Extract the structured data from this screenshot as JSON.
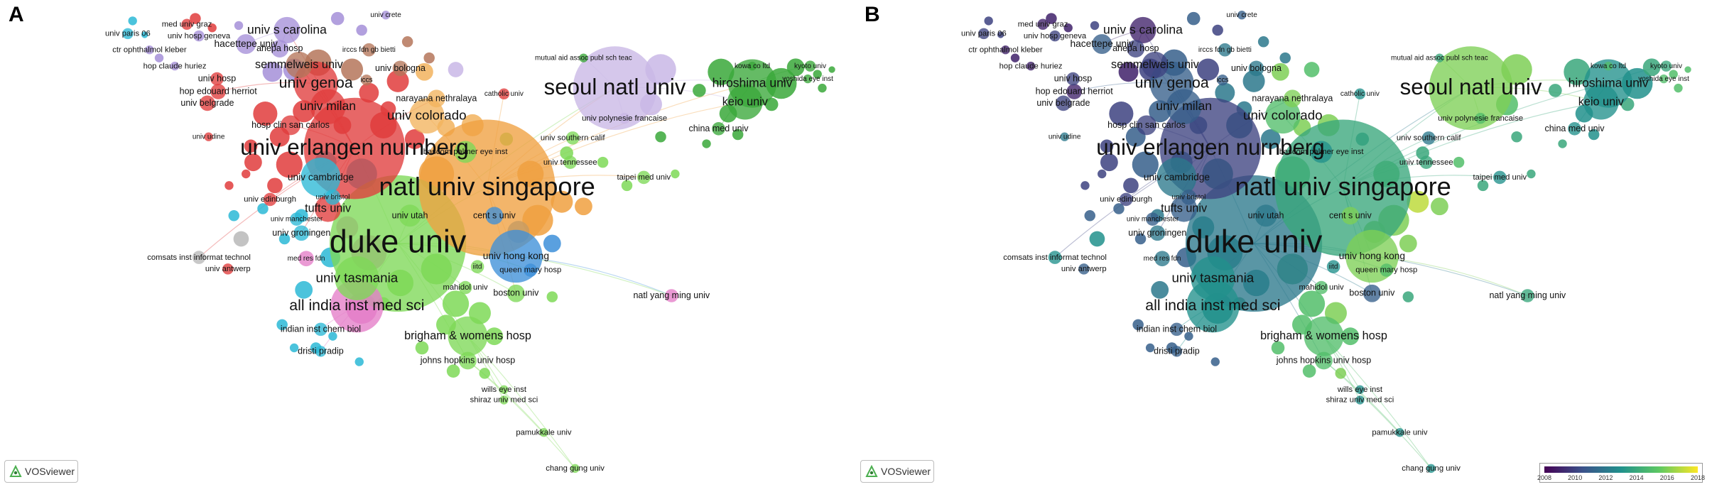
{
  "panels": [
    {
      "letter": "A",
      "mode": "cluster"
    },
    {
      "letter": "B",
      "mode": "overlay"
    }
  ],
  "software_label": "VOSviewer",
  "overlay_legend": {
    "ticks": [
      "2008",
      "2010",
      "2012",
      "2014",
      "2016",
      "2018"
    ],
    "colors": [
      "#440154",
      "#3b528b",
      "#21918c",
      "#5ec962",
      "#fde725"
    ]
  },
  "cluster_colors": {
    "red": "#e03c3c",
    "green": "#7ed957",
    "blue": "#3d8fd9",
    "yellow": "#f2b35e",
    "purple": "#a58fd8",
    "skyblue": "#2cb8d6",
    "orange": "#f0a040",
    "pink": "#e47ec8",
    "brown": "#b5765a",
    "lilac": "#c9b7e6",
    "gray": "#b8b8b8",
    "darkgreen": "#3aa83a"
  },
  "nodes": [
    {
      "label": "duke univ",
      "c": "green",
      "o": 2012
    },
    {
      "label": "natl univ singapore",
      "c": "orange",
      "o": 2014
    },
    {
      "label": "univ erlangen nurnberg",
      "c": "red",
      "o": 2010
    },
    {
      "label": "seoul natl univ",
      "c": "lilac",
      "o": 2016
    },
    {
      "label": "hiroshima univ",
      "c": "darkgreen",
      "o": 2013
    },
    {
      "label": "keio univ",
      "c": "darkgreen",
      "o": 2013
    },
    {
      "label": "univ genoa",
      "c": "red",
      "o": 2011
    },
    {
      "label": "univ milan",
      "c": "red",
      "o": 2011
    },
    {
      "label": "univ colorado",
      "c": "yellow",
      "o": 2015
    },
    {
      "label": "univ s carolina",
      "c": "purple",
      "o": 2009
    },
    {
      "label": "semmelweis univ",
      "c": "brown",
      "o": 2010
    },
    {
      "label": "univ tasmania",
      "c": "green",
      "o": 2013
    },
    {
      "label": "all india inst med sci",
      "c": "pink",
      "o": 2013
    },
    {
      "label": "brigham & womens hosp",
      "c": "green",
      "o": 2015
    },
    {
      "label": "natl yang ming univ",
      "c": "pink",
      "o": 2014
    },
    {
      "label": "univ hong kong",
      "c": "blue",
      "o": 2016
    },
    {
      "label": "boston univ",
      "c": "green",
      "o": 2011
    },
    {
      "label": "tufts univ",
      "c": "red",
      "o": 2011
    },
    {
      "label": "univ cambridge",
      "c": "skyblue",
      "o": 2012
    },
    {
      "label": "china med univ",
      "c": "darkgreen",
      "o": 2013
    },
    {
      "label": "johns hopkins univ hosp",
      "c": "green",
      "o": 2015
    },
    {
      "label": "hacettepe univ",
      "c": "purple",
      "o": 2011
    },
    {
      "label": "ahepa hosp",
      "c": "purple",
      "o": 2010
    },
    {
      "label": "univ hosp",
      "c": "red",
      "o": 2010
    },
    {
      "label": "hop edouard herriot",
      "c": "red",
      "o": 2009
    },
    {
      "label": "univ belgrade",
      "c": "red",
      "o": 2010
    },
    {
      "label": "narayana nethralaya",
      "c": "yellow",
      "o": 2016
    },
    {
      "label": "univ bologna",
      "c": "brown",
      "o": 2012
    },
    {
      "label": "hosp clin san carlos",
      "c": "red",
      "o": 2010
    },
    {
      "label": "univ southern calif",
      "c": "green",
      "o": 2012
    },
    {
      "label": "univ tennessee",
      "c": "green",
      "o": 2014
    },
    {
      "label": "bascom palmer eye inst",
      "c": "green",
      "o": 2013
    },
    {
      "label": "taipei med univ",
      "c": "green",
      "o": 2013
    },
    {
      "label": "univ utah",
      "c": "green",
      "o": 2012
    },
    {
      "label": "cent s univ",
      "c": "blue",
      "o": 2016
    },
    {
      "label": "univ edinburgh",
      "c": "red",
      "o": 2010
    },
    {
      "label": "univ groningen",
      "c": "skyblue",
      "o": 2012
    },
    {
      "label": "comsats inst informat technol",
      "c": "gray",
      "o": 2013
    },
    {
      "label": "univ antwerp",
      "c": "red",
      "o": 2011
    },
    {
      "label": "indian inst chem biol",
      "c": "skyblue",
      "o": 2011
    },
    {
      "label": "dristi pradip",
      "c": "skyblue",
      "o": 2011
    },
    {
      "label": "mahidol univ",
      "c": "green",
      "o": 2015
    },
    {
      "label": "queen mary hosp",
      "c": "blue",
      "o": 2015
    },
    {
      "label": "wills eye inst",
      "c": "green",
      "o": 2013
    },
    {
      "label": "shiraz univ med sci",
      "c": "green",
      "o": 2013
    },
    {
      "label": "pamukkale univ",
      "c": "green",
      "o": 2013
    },
    {
      "label": "chang gung univ",
      "c": "green",
      "o": 2013
    },
    {
      "label": "univ paris 06",
      "c": "skyblue",
      "o": 2010
    },
    {
      "label": "med univ graz",
      "c": "red",
      "o": 2009
    },
    {
      "label": "univ hosp geneva",
      "c": "purple",
      "o": 2010
    },
    {
      "label": "ctr ophthalmol kleber",
      "c": "purple",
      "o": 2009
    },
    {
      "label": "hop claude huriez",
      "c": "purple",
      "o": 2009
    },
    {
      "label": "univ crete",
      "c": "purple",
      "o": 2011
    },
    {
      "label": "mutual aid assoc publ sch teac",
      "c": "darkgreen",
      "o": 2014
    },
    {
      "label": "catholic univ",
      "c": "red",
      "o": 2013
    },
    {
      "label": "univ polynesie francaise",
      "c": "lilac",
      "o": 2015
    },
    {
      "label": "kowa co ltd",
      "c": "darkgreen",
      "o": 2015
    },
    {
      "label": "kyoto univ",
      "c": "darkgreen",
      "o": 2014
    },
    {
      "label": "yoshida eye inst",
      "c": "darkgreen",
      "o": 2015
    },
    {
      "label": "univ udine",
      "c": "red",
      "o": 2012
    },
    {
      "label": "univ bristol",
      "c": "skyblue",
      "o": 2011
    },
    {
      "label": "univ manchester",
      "c": "skyblue",
      "o": 2011
    },
    {
      "label": "med res fdn",
      "c": "pink",
      "o": 2012
    },
    {
      "label": "iitd",
      "c": "green",
      "o": 2013
    },
    {
      "label": "iccs",
      "c": "brown",
      "o": 2011
    },
    {
      "label": "irccs fdn gb bietti",
      "c": "brown",
      "o": 2012
    }
  ]
}
